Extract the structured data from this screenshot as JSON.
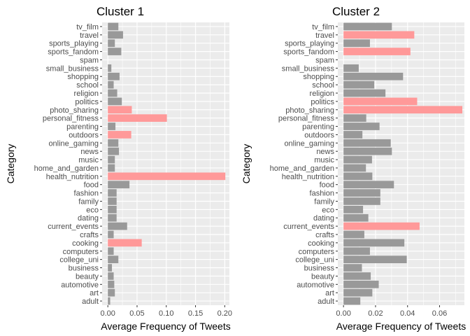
{
  "chart_data": [
    {
      "type": "bar",
      "orientation": "horizontal",
      "title": "Cluster 1",
      "xlabel": "Average Frequency of Tweets",
      "ylabel": "Category",
      "xlim": [
        0,
        0.208
      ],
      "xticks": [
        0.0,
        0.05,
        0.1,
        0.15,
        0.2
      ],
      "xtick_labels": [
        "0.00",
        "0.05",
        "0.10",
        "0.15",
        "0.20"
      ],
      "grid": true,
      "categories": [
        "adult",
        "art",
        "automotive",
        "beauty",
        "business",
        "college_uni",
        "computers",
        "cooking",
        "crafts",
        "current_events",
        "dating",
        "eco",
        "family",
        "fashion",
        "food",
        "health_nutrition",
        "home_and_garden",
        "music",
        "news",
        "online_gaming",
        "outdoors",
        "parenting",
        "personal_fitness",
        "photo_sharing",
        "politics",
        "religion",
        "school",
        "shopping",
        "small_business",
        "spam",
        "sports_fandom",
        "sports_playing",
        "travel",
        "tv_film"
      ],
      "values": [
        0.004,
        0.012,
        0.011,
        0.01,
        0.007,
        0.018,
        0.01,
        0.058,
        0.01,
        0.033,
        0.015,
        0.015,
        0.015,
        0.015,
        0.037,
        0.201,
        0.012,
        0.012,
        0.019,
        0.018,
        0.04,
        0.013,
        0.101,
        0.041,
        0.024,
        0.016,
        0.01,
        0.02,
        0.006,
        0.0,
        0.023,
        0.012,
        0.026,
        0.018
      ],
      "highlighted": [
        "cooking",
        "health_nutrition",
        "outdoors",
        "personal_fitness",
        "photo_sharing"
      ],
      "highlight_color": "#ff9999",
      "bar_color": "#999999"
    },
    {
      "type": "bar",
      "orientation": "horizontal",
      "title": "Cluster 2",
      "xlabel": "Average Frequency of Tweets",
      "ylabel": "Category",
      "xlim": [
        0,
        0.0755
      ],
      "xticks": [
        0.0,
        0.02,
        0.04,
        0.06
      ],
      "xtick_labels": [
        "0.00",
        "0.02",
        "0.04",
        "0.06"
      ],
      "grid": true,
      "categories": [
        "adult",
        "art",
        "automotive",
        "beauty",
        "business",
        "college_uni",
        "computers",
        "cooking",
        "crafts",
        "current_events",
        "dating",
        "eco",
        "family",
        "fashion",
        "food",
        "health_nutrition",
        "home_and_garden",
        "music",
        "news",
        "online_gaming",
        "outdoors",
        "parenting",
        "personal_fitness",
        "photo_sharing",
        "politics",
        "religion",
        "school",
        "shopping",
        "small_business",
        "spam",
        "sports_fandom",
        "sports_playing",
        "travel",
        "tv_film"
      ],
      "values": [
        0.0105,
        0.018,
        0.022,
        0.017,
        0.0115,
        0.0395,
        0.0165,
        0.038,
        0.013,
        0.0475,
        0.0155,
        0.0122,
        0.023,
        0.023,
        0.0315,
        0.018,
        0.014,
        0.0178,
        0.0302,
        0.0295,
        0.0118,
        0.0225,
        0.0142,
        0.0742,
        0.046,
        0.0262,
        0.0192,
        0.0372,
        0.0095,
        0.0,
        0.0418,
        0.0165,
        0.0442,
        0.0302
      ],
      "highlighted": [
        "current_events",
        "photo_sharing",
        "politics",
        "sports_fandom",
        "travel"
      ],
      "highlight_color": "#ff9999",
      "bar_color": "#999999"
    }
  ]
}
